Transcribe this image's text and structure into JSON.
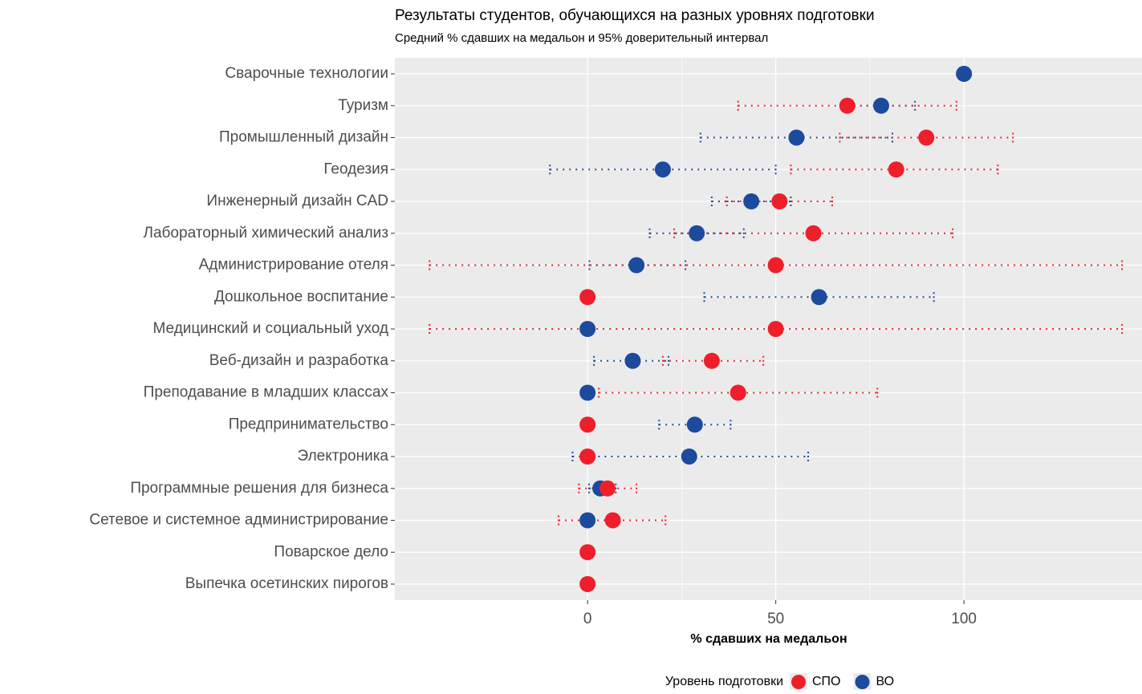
{
  "chart_data": {
    "type": "dot",
    "title": "Результаты студентов, обучающихся на разных уровнях подготовки",
    "subtitle": "Средний % сдавших на медальон и 95% доверительный интервал",
    "x_label": "% сдавших на медальон",
    "legend_title": "Уровень подготовки",
    "categories": [
      "Сварочные технологии",
      "Туризм",
      "Промышленный дизайн",
      "Геодезия",
      "Инженерный дизайн CAD",
      "Лабораторный химический анализ",
      "Администрирование отеля",
      "Дошкольное воспитание",
      "Медицинский и социальный уход",
      "Веб-дизайн и разработка",
      "Преподавание в младших классах",
      "Предпринимательство",
      "Электроника",
      "Программные решения для бизнеса",
      "Сетевое и системное администрирование",
      "Поварское дело",
      "Выпечка осетинских пирогов"
    ],
    "series": [
      {
        "name": "СПО",
        "color": "#ee1f2b",
        "values": [
          null,
          69,
          90,
          82,
          51,
          60,
          50,
          0,
          50,
          33,
          40,
          0,
          0,
          5.3,
          6.7,
          0,
          0
        ],
        "lower": [
          null,
          40,
          67,
          54,
          37,
          23,
          -42,
          null,
          -42,
          20,
          3,
          null,
          null,
          -2.3,
          -7.7,
          null,
          null
        ],
        "upper": [
          null,
          98,
          113,
          109,
          65,
          97,
          142,
          null,
          142,
          46.7,
          77,
          null,
          null,
          13,
          20.7,
          null,
          null
        ]
      },
      {
        "name": "ВО",
        "color": "#1c4a9c",
        "values": [
          100,
          78,
          55.5,
          20,
          43.5,
          29,
          13,
          61.5,
          0,
          12,
          0,
          28.5,
          27,
          3.4,
          0,
          null,
          null
        ],
        "lower": [
          null,
          69,
          30,
          -10,
          33,
          16.5,
          0.5,
          31,
          null,
          1.7,
          null,
          19,
          -4,
          0.4,
          null,
          null,
          null
        ],
        "upper": [
          null,
          87,
          81,
          50,
          54,
          41.5,
          26,
          92,
          null,
          21.5,
          null,
          38,
          58.6,
          7.5,
          null,
          null,
          null
        ]
      }
    ],
    "xlim": [
      -51.2,
      147.3
    ],
    "xticks": [
      0,
      50,
      100
    ],
    "grid": true,
    "legend": "bottom"
  }
}
